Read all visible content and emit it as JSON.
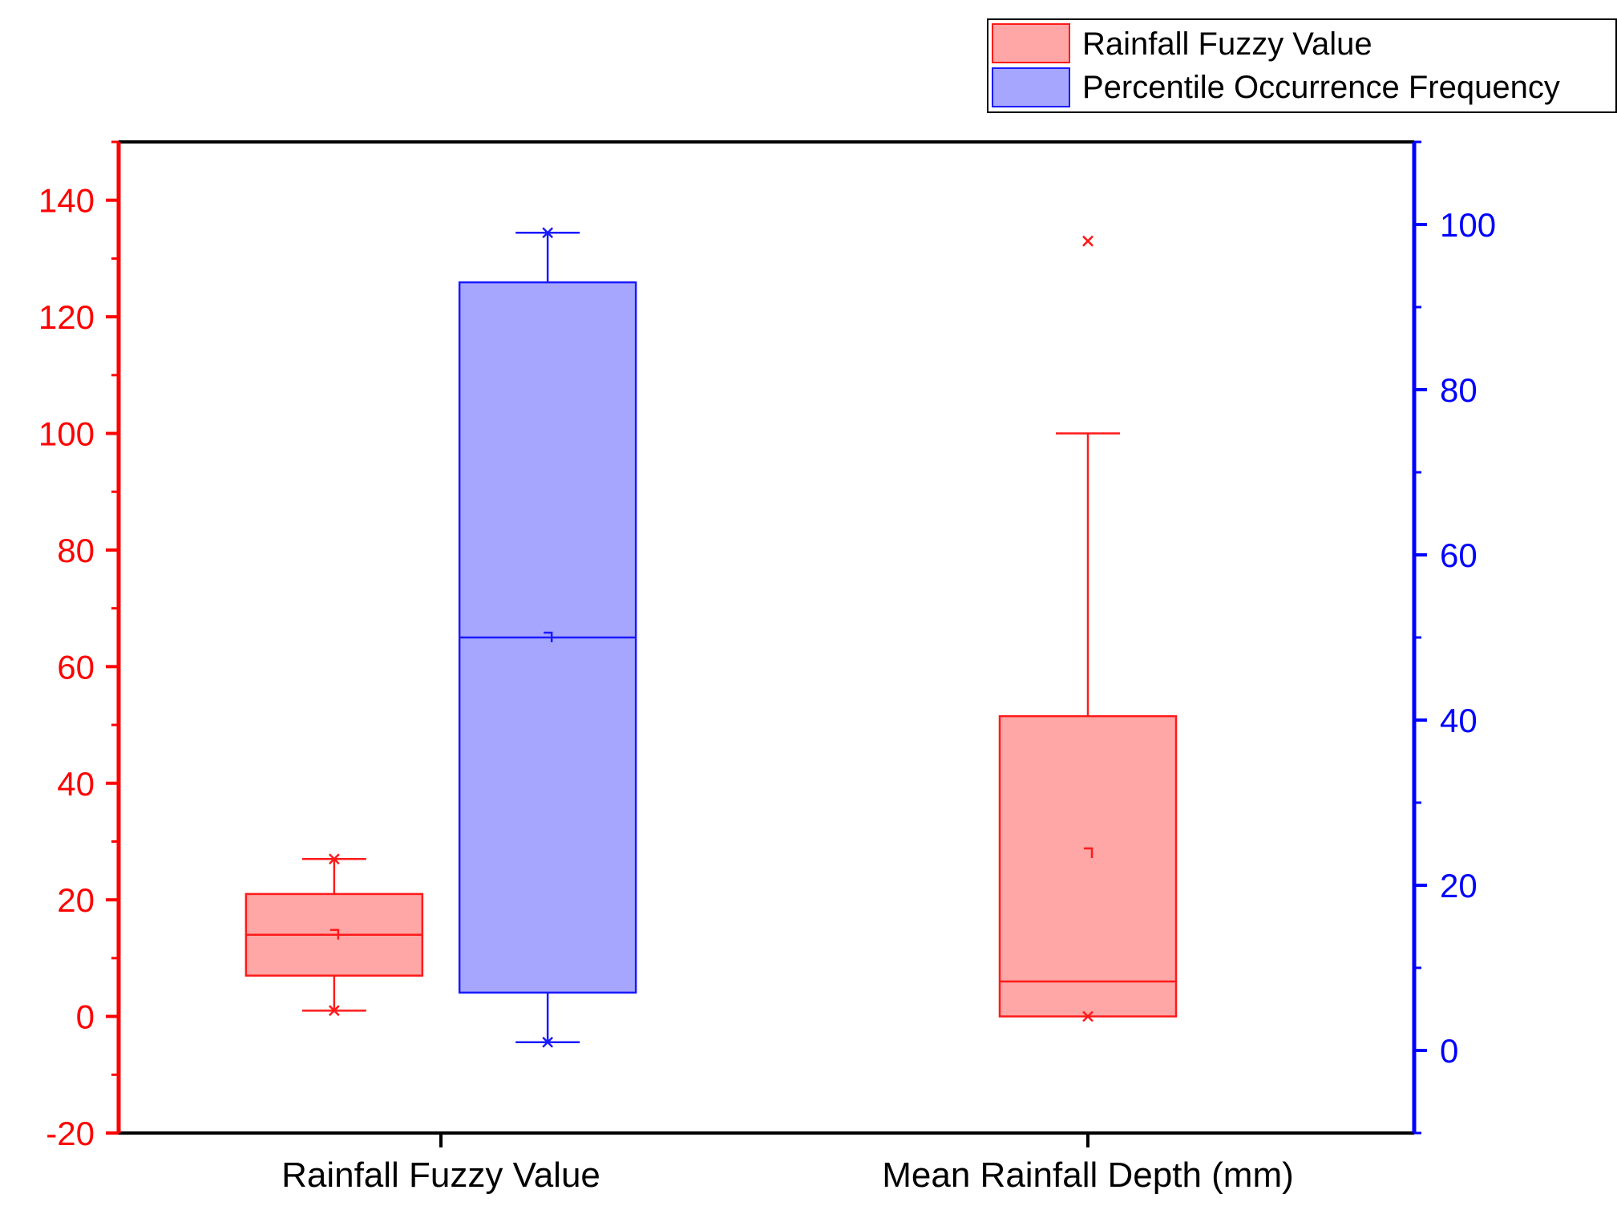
{
  "colors": {
    "left_axis": "#ff0000",
    "right_axis": "#0000ff",
    "red_fill": "#ffa6a6",
    "red_stroke": "#ff1a1a",
    "blue_fill": "#a6a6ff",
    "blue_stroke": "#1a1aff"
  },
  "chart_data": {
    "type": "box",
    "title": "",
    "categories": [
      "Rainfall Fuzzy Value",
      "Mean Rainfall Depth (mm)"
    ],
    "left_axis": {
      "ylim": [
        -20,
        150
      ],
      "ticks": [
        -20,
        0,
        20,
        40,
        60,
        80,
        100,
        120,
        140
      ],
      "tick_labels": [
        "-20",
        "0",
        "20",
        "40",
        "60",
        "80",
        "100",
        "120",
        "140"
      ]
    },
    "right_axis": {
      "ylim": [
        -10,
        110
      ],
      "ticks": [
        0,
        20,
        40,
        60,
        80,
        100
      ],
      "tick_labels": [
        "0",
        "20",
        "40",
        "60",
        "80",
        "100"
      ]
    },
    "legend": {
      "position": "top-right",
      "entries": [
        {
          "label": "Rainfall Fuzzy Value",
          "series": "red"
        },
        {
          "label": "Percentile Occurrence Frequency",
          "series": "blue"
        }
      ]
    },
    "boxes": [
      {
        "series": "red",
        "name": "Rainfall Fuzzy Value",
        "category": 0,
        "axis": "left",
        "offset": -0.33,
        "min": 1,
        "q1": 7,
        "median": 14,
        "q3": 21,
        "max": 27,
        "whisker_low": 1,
        "whisker_high": 27,
        "mean": 14,
        "outliers": []
      },
      {
        "series": "blue",
        "name": "Percentile Occurrence Frequency",
        "category": 0,
        "axis": "right",
        "offset": 0.33,
        "min": 1,
        "q1": 7,
        "median": 50,
        "q3": 93,
        "max": 99,
        "whisker_low": 1,
        "whisker_high": 99,
        "mean": 50,
        "outliers": []
      },
      {
        "series": "red",
        "name": "Mean Rainfall Depth (mm)",
        "category": 1,
        "axis": "left",
        "offset": 0,
        "min": 0,
        "q1": 0,
        "median": 6,
        "q3": 51.5,
        "max": 133,
        "whisker_low": null,
        "whisker_high": 100,
        "mean": 28,
        "outliers": [
          133
        ]
      }
    ]
  }
}
